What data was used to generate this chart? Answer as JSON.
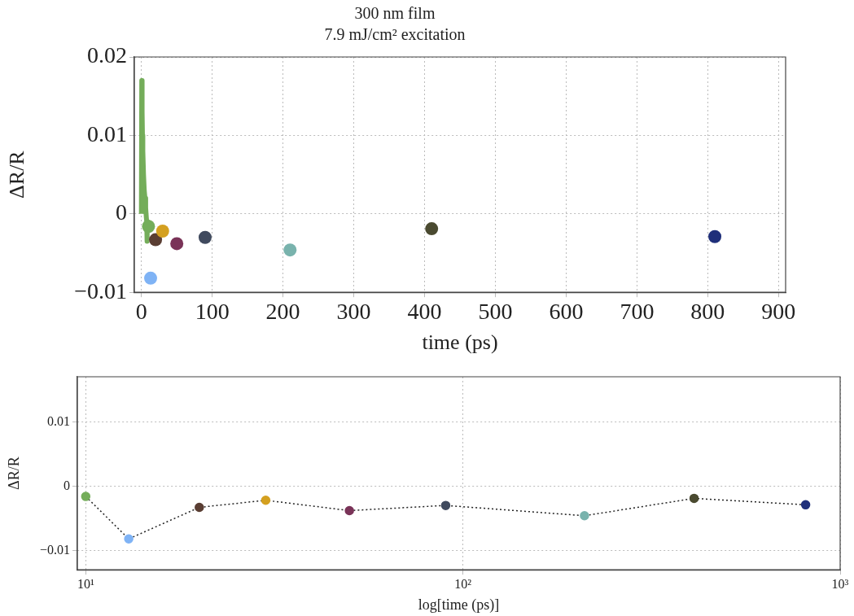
{
  "chart_data": [
    {
      "type": "line",
      "title": "300 nm film",
      "subtitle": "7.9 mJ/cm² excitation",
      "xlabel": "time (ps)",
      "ylabel": "ΔR/R",
      "xlim": [
        -10,
        910
      ],
      "xticks": [
        0,
        100,
        200,
        300,
        400,
        500,
        600,
        700,
        800,
        900
      ],
      "ylim": [
        -0.01,
        0.02
      ],
      "yticks": [
        {
          "value": -0.01,
          "label": "−0.01"
        },
        0,
        0.01,
        0.02
      ],
      "grid": true,
      "legend": false,
      "marker": "circle",
      "series": [
        {
          "marker": "none",
          "color": "#74ad5a",
          "x": [
            0,
            0.5,
            1,
            1.5,
            2,
            3,
            4,
            5,
            6,
            7,
            7.5,
            8,
            8.5,
            9,
            10
          ],
          "values": [
            0,
            0.017,
            0.013,
            0.01,
            0.008,
            0.005,
            0.003,
            0.002,
            0.0008,
            -0.0005,
            -0.001,
            -0.0035,
            -0.001,
            -0.0012,
            -0.0016
          ]
        },
        {
          "type": "scatter",
          "x": [
            10,
            13,
            20,
            30,
            50,
            90,
            210,
            410,
            810
          ],
          "values": [
            -0.0016,
            -0.0082,
            -0.0033,
            -0.0022,
            -0.0038,
            -0.003,
            -0.0046,
            -0.0019,
            -0.0029
          ],
          "colors": [
            "#74ad5a",
            "#7fb3f5",
            "#5a3e33",
            "#d4a020",
            "#7a3358",
            "#404a5e",
            "#79b3ad",
            "#4a4a30",
            "#1f2f7a"
          ]
        }
      ]
    },
    {
      "type": "line",
      "xlabel": "log[time (ps)]",
      "ylabel": "ΔR/R",
      "log": "x",
      "xlim": [
        9.5,
        1000
      ],
      "xticks": [
        {
          "value": 10,
          "label": "10¹"
        },
        {
          "value": 100,
          "label": "10²"
        },
        {
          "value": 1000,
          "label": "10³"
        }
      ],
      "ylim": [
        -0.013,
        0.017
      ],
      "yticks": [
        {
          "value": -0.01,
          "label": "−0.01"
        },
        0,
        0.01
      ],
      "grid": true,
      "legend": false,
      "marker": "circle",
      "line_style": "dotted",
      "series": [
        {
          "color": "#222222",
          "x": [
            10,
            13,
            20,
            30,
            50,
            90,
            210,
            410,
            810
          ],
          "values": [
            -0.0016,
            -0.0082,
            -0.0033,
            -0.0022,
            -0.0038,
            -0.003,
            -0.0046,
            -0.0019,
            -0.0029
          ],
          "colors": [
            "#74ad5a",
            "#7fb3f5",
            "#5a3e33",
            "#d4a020",
            "#7a3358",
            "#404a5e",
            "#79b3ad",
            "#4a4a30",
            "#1f2f7a"
          ]
        }
      ]
    }
  ]
}
